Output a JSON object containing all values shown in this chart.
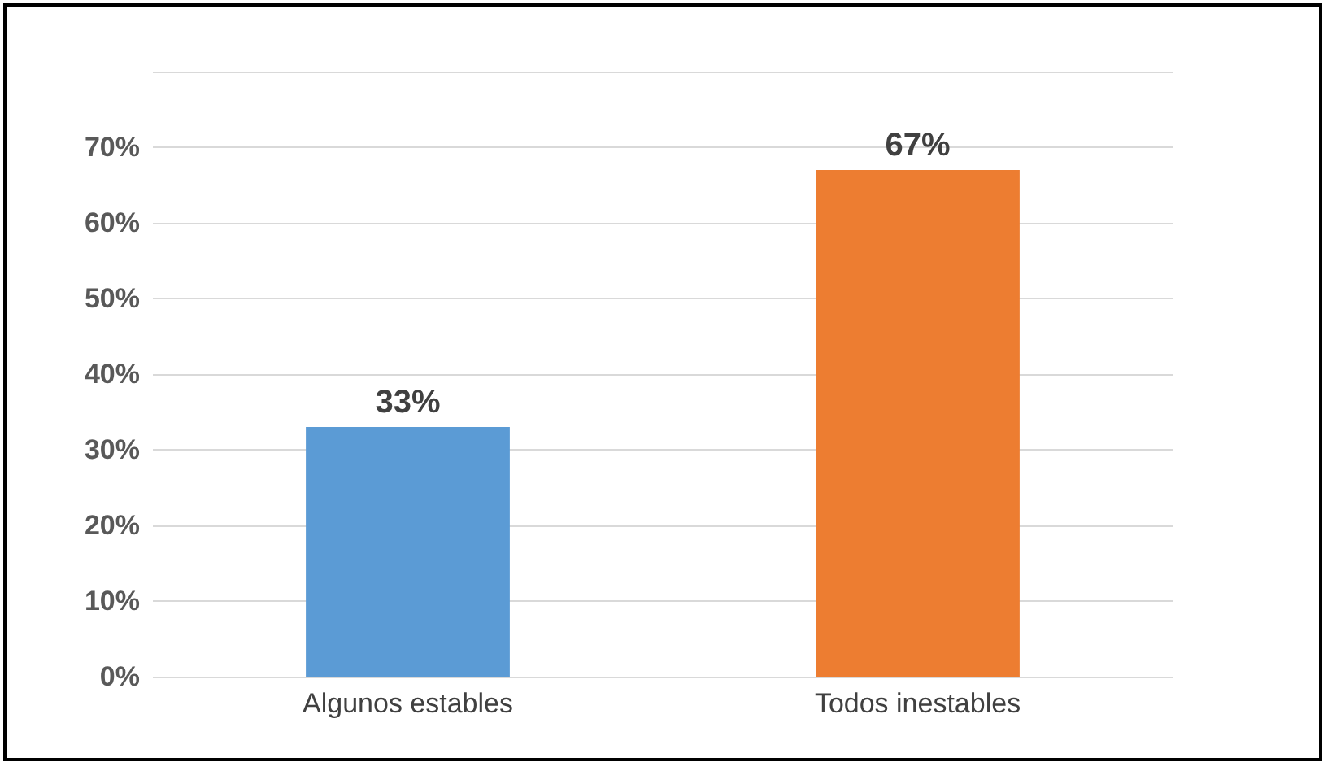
{
  "chart_data": {
    "type": "bar",
    "categories": [
      "Algunos estables",
      "Todos inestables"
    ],
    "values": [
      33,
      67
    ],
    "colors": [
      "#5b9bd5",
      "#ed7d31"
    ],
    "value_labels": [
      "33%",
      "67%"
    ],
    "ylim": [
      0,
      80
    ],
    "yticks": [
      {
        "value": 0,
        "label": "0%"
      },
      {
        "value": 10,
        "label": "10%"
      },
      {
        "value": 20,
        "label": "20%"
      },
      {
        "value": 30,
        "label": "30%"
      },
      {
        "value": 40,
        "label": "40%"
      },
      {
        "value": 50,
        "label": "50%"
      },
      {
        "value": 60,
        "label": "60%"
      },
      {
        "value": 70,
        "label": "70%"
      },
      {
        "value": 80,
        "label": null
      }
    ],
    "grid": "y"
  }
}
